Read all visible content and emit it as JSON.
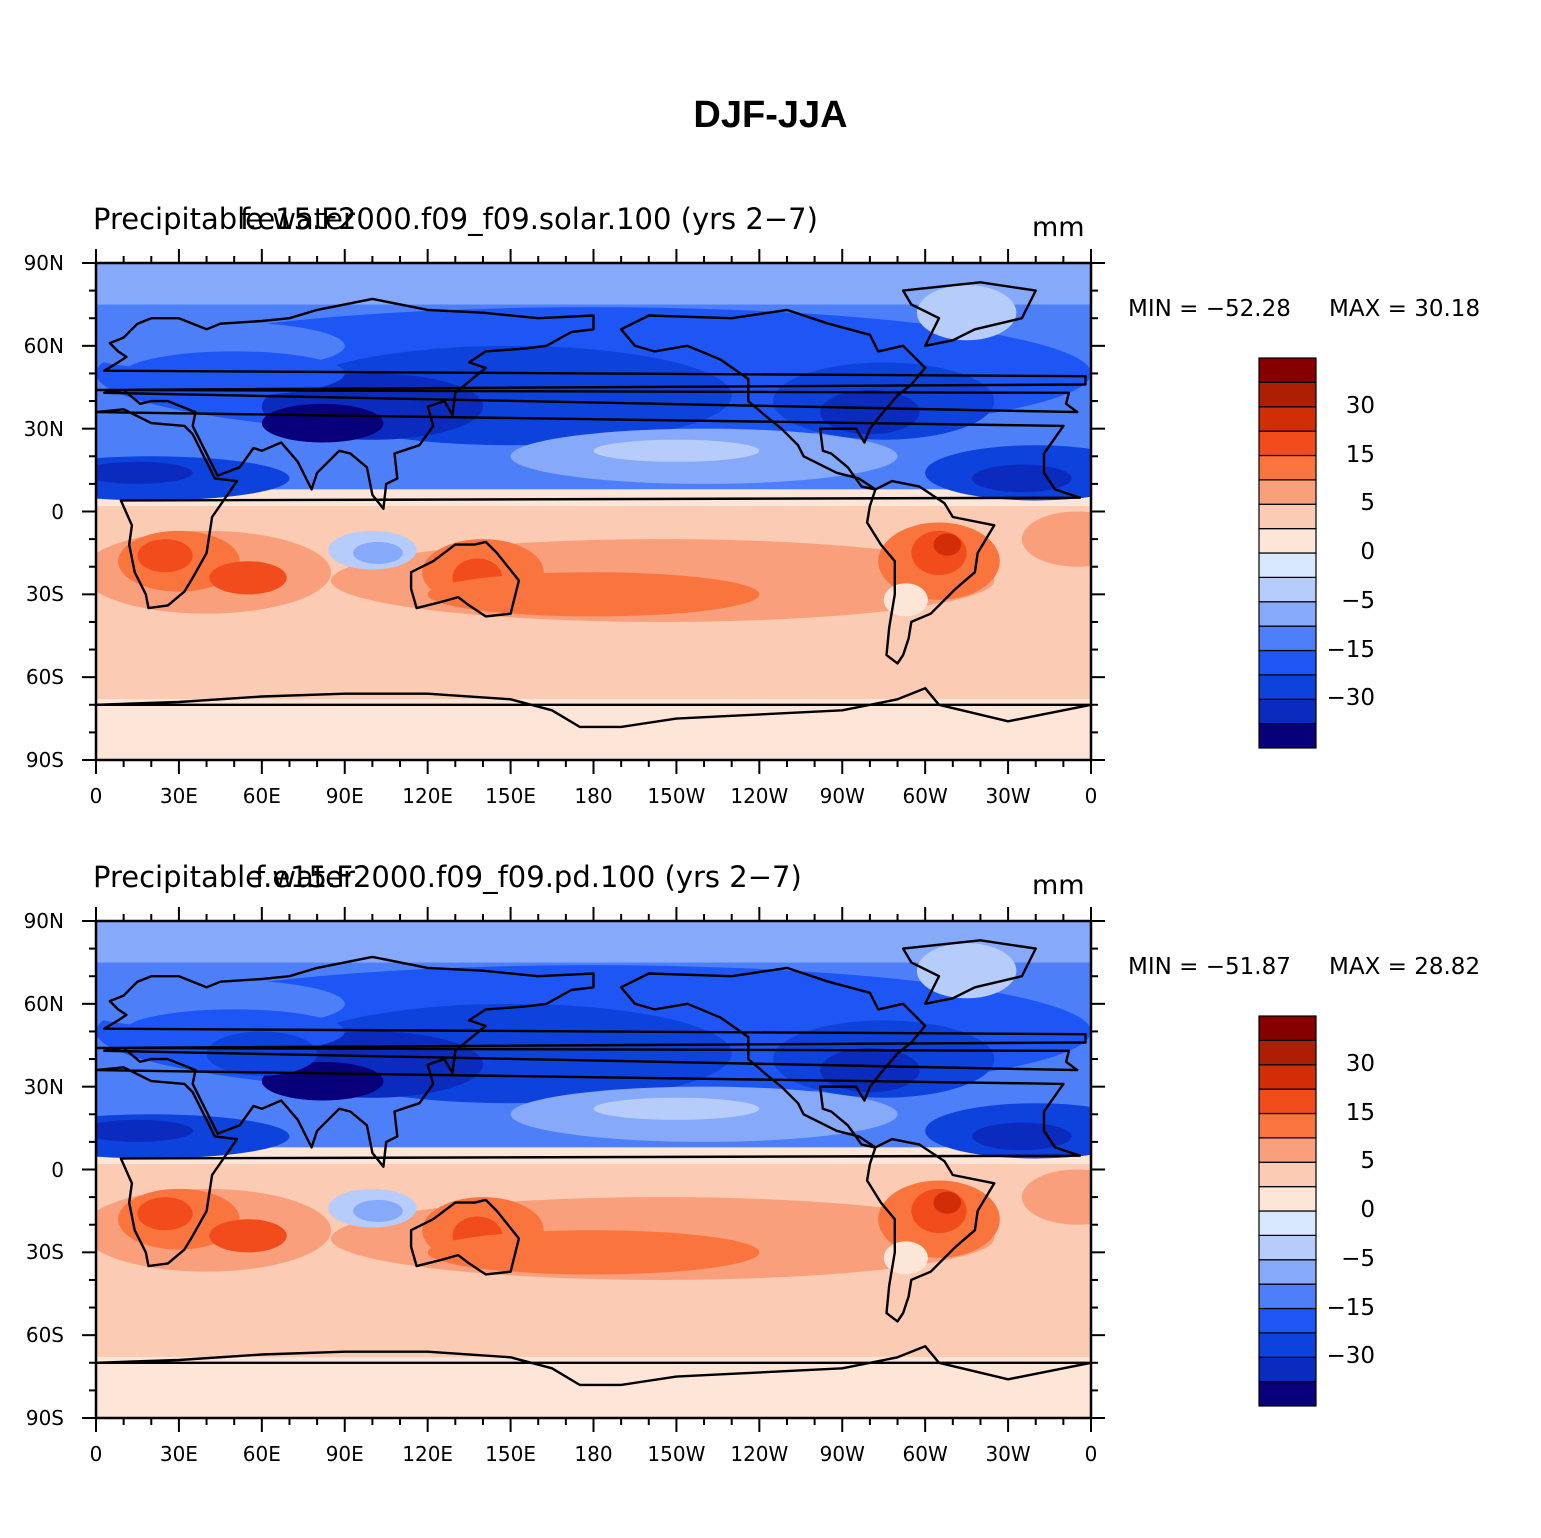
{
  "figure": {
    "title": "DJF-JJA"
  },
  "map_axes": {
    "lat_ticks": [
      "90N",
      "60N",
      "30N",
      "0",
      "30S",
      "60S",
      "90S"
    ],
    "lon_ticks": [
      "0",
      "30E",
      "60E",
      "90E",
      "120E",
      "150E",
      "180",
      "150W",
      "120W",
      "90W",
      "60W",
      "30W",
      "0"
    ]
  },
  "colorbar": {
    "colors": [
      "#08007a",
      "#0a2bbe",
      "#0e42dd",
      "#1e56f5",
      "#4d7ff8",
      "#86aaf9",
      "#b6cdfb",
      "#d8e9ff",
      "#fde6d7",
      "#fccbb4",
      "#fa9f7b",
      "#fa743e",
      "#f24b1c",
      "#d12e08",
      "#ad1e04",
      "#860000"
    ],
    "labels": [
      "30",
      "15",
      "5",
      "0",
      "−5",
      "−15",
      "−30"
    ]
  },
  "panels": [
    {
      "variable": "Precipitable water",
      "case": "f.e15.F2000.f09_f09.solar.100 (yrs 2−7)",
      "units": "mm",
      "min_text": "MIN = −52.28",
      "max_text": "MAX =   30.18",
      "min": -52.28,
      "max": 30.18
    },
    {
      "variable": "Precipitable water",
      "case": "f.e15.F2000.f09_f09.pd.100 (yrs 2−7)",
      "units": "mm",
      "min_text": "MIN = −51.87",
      "max_text": "MAX =   28.82",
      "min": -51.87,
      "max": 28.82
    }
  ]
}
